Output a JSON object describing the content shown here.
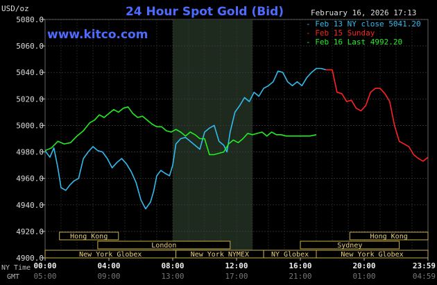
{
  "chart_data": {
    "type": "line",
    "title": "24 Hour Spot Gold (Bid)",
    "website": "www.kitco.com",
    "unit_label": "USD/oz",
    "date_label": "February 16, 2026 17:13",
    "ylim": [
      4900,
      5080
    ],
    "yticks": [
      "5080.0",
      "5060.0",
      "5040.0",
      "5020.0",
      "5000.0",
      "4980.0",
      "4960.0",
      "4940.0",
      "4920.0",
      "4900.0"
    ],
    "ytick_values": [
      5080,
      5060,
      5040,
      5020,
      5000,
      4980,
      4960,
      4940,
      4920,
      4900
    ],
    "xlim": [
      0,
      24
    ],
    "x_row_label_ny": "NY Time",
    "x_row_label_gmt": "GMT",
    "x_ticks_ny": [
      "00:00",
      "04:00",
      "08:00",
      "12:00",
      "16:00",
      "20:00",
      "23:59"
    ],
    "x_ticks_gmt": [
      "05:00",
      "09:00",
      "13:00",
      "17:00",
      "21:00",
      "01:00",
      "04:59"
    ],
    "x_tick_hours": [
      0,
      4,
      8,
      12,
      16,
      20,
      24
    ],
    "shaded_region_hours": [
      8,
      13
    ],
    "grid": true,
    "legend_position": "top-right",
    "legend": [
      {
        "label": "Feb 13 NY close 5041.20",
        "color": "#33bbee"
      },
      {
        "label": "Feb 15 Sunday",
        "color": "#ff2222"
      },
      {
        "label": "Feb 16 Last 4992.20",
        "color": "#22ee22"
      }
    ],
    "sessions": [
      {
        "label": "Hong Kong",
        "row": 0,
        "start": 0.9,
        "end": 4.6
      },
      {
        "label": "Hong Kong",
        "row": 0,
        "start": 19.1,
        "end": 24.0
      },
      {
        "label": "London",
        "row": 1,
        "start": 3.3,
        "end": 11.6
      },
      {
        "label": "Sydney",
        "row": 1,
        "start": 16.0,
        "end": 22.2
      },
      {
        "label": "New York Globex",
        "row": 2,
        "start": 0.0,
        "end": 8.2
      },
      {
        "label": "New York NYMEX",
        "row": 2,
        "start": 8.2,
        "end": 13.7
      },
      {
        "label": "NY Globex",
        "row": 2,
        "start": 13.7,
        "end": 17.0
      },
      {
        "label": "New York Globex",
        "row": 2,
        "start": 17.0,
        "end": 24.0
      }
    ],
    "series": [
      {
        "name": "Feb 13 NY close 5041.20",
        "color": "#33bbee",
        "x": [
          0.0,
          0.3,
          0.55,
          0.8,
          1.0,
          1.3,
          1.55,
          1.8,
          2.1,
          2.4,
          2.7,
          3.0,
          3.3,
          3.6,
          3.9,
          4.2,
          4.5,
          4.8,
          5.1,
          5.4,
          5.7,
          6.0,
          6.3,
          6.6,
          6.8,
          7.0,
          7.25,
          7.5,
          7.8,
          8.0,
          8.2,
          8.5,
          8.8,
          9.1,
          9.4,
          9.7,
          10.0,
          10.3,
          10.6,
          10.9,
          11.2,
          11.4,
          11.6,
          11.9,
          12.2,
          12.5,
          12.8,
          13.1,
          13.4,
          13.7,
          14.0,
          14.3,
          14.6,
          14.9,
          15.2,
          15.5,
          15.8,
          16.1,
          16.4,
          16.7,
          17.0,
          17.3,
          17.6
        ],
        "values": [
          4981,
          4976,
          4983,
          4968,
          4953,
          4951,
          4955,
          4958,
          4960,
          4975,
          4980,
          4984,
          4981,
          4980,
          4975,
          4968,
          4972,
          4975,
          4971,
          4965,
          4957,
          4944,
          4937,
          4942,
          4950,
          4962,
          4966,
          4964,
          4962,
          4970,
          4986,
          4990,
          4991,
          4988,
          4985,
          4982,
          4995,
          4998,
          5000,
          4988,
          4985,
          4980,
          4995,
          5010,
          5015,
          5021,
          5018,
          5025,
          5022,
          5028,
          5030,
          5033,
          5041,
          5040,
          5033,
          5030,
          5033,
          5030,
          5036,
          5040,
          5043,
          5043,
          5042
        ]
      },
      {
        "name": "Feb 15 Sunday",
        "color": "#ff2222",
        "x": [
          17.6,
          18.0,
          18.3,
          18.6,
          18.9,
          19.2,
          19.5,
          19.8,
          20.1,
          20.4,
          20.7,
          21.0,
          21.3,
          21.6,
          21.9,
          22.2,
          22.5,
          22.8,
          23.1,
          23.4,
          23.7,
          24.0
        ],
        "values": [
          5042,
          5042,
          5025,
          5024,
          5018,
          5019,
          5013,
          5011,
          5015,
          5025,
          5028,
          5028,
          5024,
          5018,
          5000,
          4988,
          4986,
          4984,
          4978,
          4975,
          4973,
          4976
        ]
      },
      {
        "name": "Feb 16 Last 4992.20",
        "color": "#22ee22",
        "x": [
          0.0,
          0.4,
          0.8,
          1.2,
          1.6,
          2.0,
          2.4,
          2.8,
          3.1,
          3.4,
          3.7,
          4.0,
          4.3,
          4.6,
          4.9,
          5.2,
          5.5,
          5.8,
          6.1,
          6.4,
          6.7,
          7.0,
          7.3,
          7.6,
          7.9,
          8.2,
          8.5,
          8.8,
          9.1,
          9.4,
          9.7,
          10.0,
          10.3,
          10.6,
          10.9,
          11.2,
          11.5,
          11.8,
          12.1,
          12.4,
          12.7,
          13.0,
          13.3,
          13.6,
          13.9,
          14.2,
          14.5,
          14.8,
          15.1,
          15.4,
          15.7,
          16.0,
          16.3,
          16.6,
          17.0
        ],
        "values": [
          4981,
          4983,
          4988,
          4986,
          4987,
          4992,
          4996,
          5002,
          5004,
          5008,
          5006,
          5009,
          5012,
          5010,
          5013,
          5014,
          5009,
          5006,
          5007,
          5004,
          5001,
          4999,
          4999,
          4996,
          4995,
          4997,
          4995,
          4992,
          4995,
          4993,
          4990,
          4990,
          4978,
          4978,
          4979,
          4980,
          4986,
          4989,
          4987,
          4990,
          4994,
          4993,
          4994,
          4995,
          4992,
          4995,
          4993,
          4993,
          4992,
          4992,
          4992,
          4992,
          4992,
          4992,
          4993
        ]
      }
    ]
  }
}
